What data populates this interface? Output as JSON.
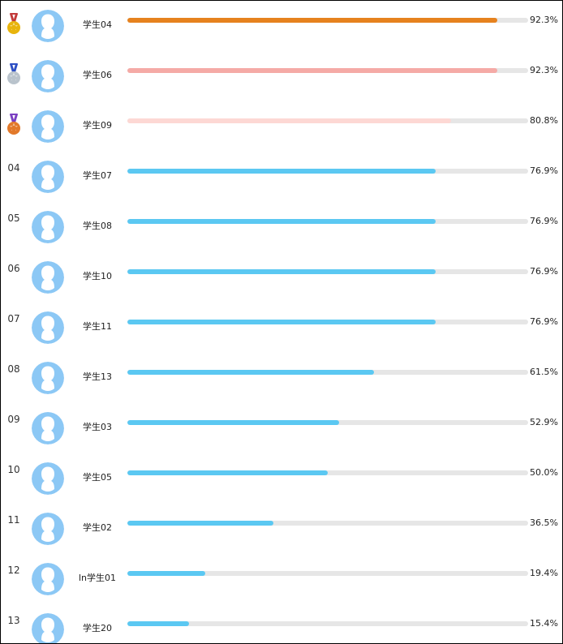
{
  "leaderboard": {
    "rows": [
      {
        "rank": "01",
        "medal": "gold-medal-icon",
        "medal_color": "#e8b40c",
        "ribbon_color": "#c23a3a",
        "name": "学生04",
        "percent_label": "92.3%",
        "value": 92.3,
        "bar_color": "#e6821e"
      },
      {
        "rank": "02",
        "medal": "silver-medal-icon",
        "medal_color": "#b9c3cc",
        "ribbon_color": "#2d4fc4",
        "name": "学生06",
        "percent_label": "92.3%",
        "value": 92.3,
        "bar_color": "#f5aaa6"
      },
      {
        "rank": "03",
        "medal": "bronze-medal-icon",
        "medal_color": "#e2792a",
        "ribbon_color": "#7a3fc2",
        "name": "学生09",
        "percent_label": "80.8%",
        "value": 80.8,
        "bar_color": "#fdd8d4"
      },
      {
        "rank": "04",
        "name": "学生07",
        "percent_label": "76.9%",
        "value": 76.9,
        "bar_color": "#5bc8f2"
      },
      {
        "rank": "05",
        "name": "学生08",
        "percent_label": "76.9%",
        "value": 76.9,
        "bar_color": "#5bc8f2"
      },
      {
        "rank": "06",
        "name": "学生10",
        "percent_label": "76.9%",
        "value": 76.9,
        "bar_color": "#5bc8f2"
      },
      {
        "rank": "07",
        "name": "学生11",
        "percent_label": "76.9%",
        "value": 76.9,
        "bar_color": "#5bc8f2"
      },
      {
        "rank": "08",
        "name": "学生13",
        "percent_label": "61.5%",
        "value": 61.5,
        "bar_color": "#5bc8f2"
      },
      {
        "rank": "09",
        "name": "学生03",
        "percent_label": "52.9%",
        "value": 52.9,
        "bar_color": "#5bc8f2"
      },
      {
        "rank": "10",
        "name": "学生05",
        "percent_label": "50.0%",
        "value": 50.0,
        "bar_color": "#5bc8f2"
      },
      {
        "rank": "11",
        "name": "学生02",
        "percent_label": "36.5%",
        "value": 36.5,
        "bar_color": "#5bc8f2"
      },
      {
        "rank": "12",
        "name": "ln学生01",
        "percent_label": "19.4%",
        "value": 19.4,
        "bar_color": "#5bc8f2"
      },
      {
        "rank": "13",
        "name": "学生20",
        "percent_label": "15.4%",
        "value": 15.4,
        "bar_color": "#5bc8f2"
      }
    ],
    "avatar_icon": "user-avatar-icon",
    "avatar_color": "#8cc8f5",
    "track_color": "#e6e6e6"
  }
}
